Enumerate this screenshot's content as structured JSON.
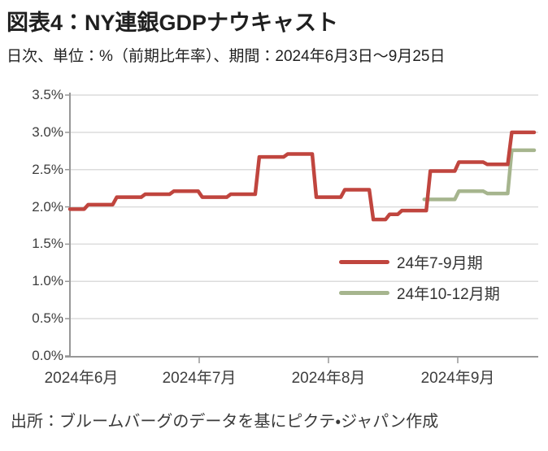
{
  "header": {
    "title": "図表4：NY連銀GDPナウキャスト",
    "subtitle": "日次、単位：%（前期比年率）、期間：2024年6月3日～9月25日"
  },
  "footer": {
    "source": "出所：ブルームバーグのデータを基にピクテ・ジャパン作成"
  },
  "colors": {
    "series_red": "#c0453e",
    "series_green": "#a6b58e",
    "grid": "#dcdcdc",
    "axis": "#979797",
    "tick_text": "#3d3d3d",
    "title_text": "#1f1f1f"
  },
  "chart_data": {
    "type": "line",
    "title": "NY連銀GDPナウキャスト",
    "xlabel": "",
    "ylabel": "%（前期比年率）",
    "x_range": [
      "2024-06-03",
      "2024-09-25"
    ],
    "ylim": [
      0.0,
      3.5
    ],
    "grid": true,
    "legend_position": "inside-right-middle",
    "y_tick_labels": [
      "3.5%",
      "3.0%",
      "2.5%",
      "2.0%",
      "1.5%",
      "1.0%",
      "0.5%",
      "0.0%"
    ],
    "y_tick_values": [
      3.5,
      3.0,
      2.5,
      2.0,
      1.5,
      1.0,
      0.5,
      0.0
    ],
    "x_tick_labels": [
      "2024年6月",
      "2024年7月",
      "2024年8月",
      "2024年9月"
    ],
    "series": [
      {
        "name": "24年10-12月期",
        "color": "#a6b58e",
        "steps": [
          [
            "2024-08-29",
            2.1
          ],
          [
            "2024-09-06",
            2.21
          ],
          [
            "2024-09-13",
            2.18
          ],
          [
            "2024-09-19",
            2.76
          ]
        ],
        "end": "2024-09-25"
      },
      {
        "name": "24年7-9月期",
        "color": "#c0453e",
        "steps": [
          [
            "2024-06-03",
            1.97
          ],
          [
            "2024-06-07",
            2.03
          ],
          [
            "2024-06-14",
            2.13
          ],
          [
            "2024-06-21",
            2.17
          ],
          [
            "2024-06-28",
            2.21
          ],
          [
            "2024-07-05",
            2.13
          ],
          [
            "2024-07-12",
            2.17
          ],
          [
            "2024-07-19",
            2.67
          ],
          [
            "2024-07-26",
            2.71
          ],
          [
            "2024-08-02",
            2.13
          ],
          [
            "2024-08-09",
            2.23
          ],
          [
            "2024-08-16",
            1.83
          ],
          [
            "2024-08-20",
            1.9
          ],
          [
            "2024-08-23",
            1.95
          ],
          [
            "2024-08-30",
            2.48
          ],
          [
            "2024-09-06",
            2.6
          ],
          [
            "2024-09-13",
            2.57
          ],
          [
            "2024-09-19",
            3.0
          ]
        ],
        "end": "2024-09-25"
      }
    ],
    "legend_order": [
      1,
      0
    ]
  }
}
